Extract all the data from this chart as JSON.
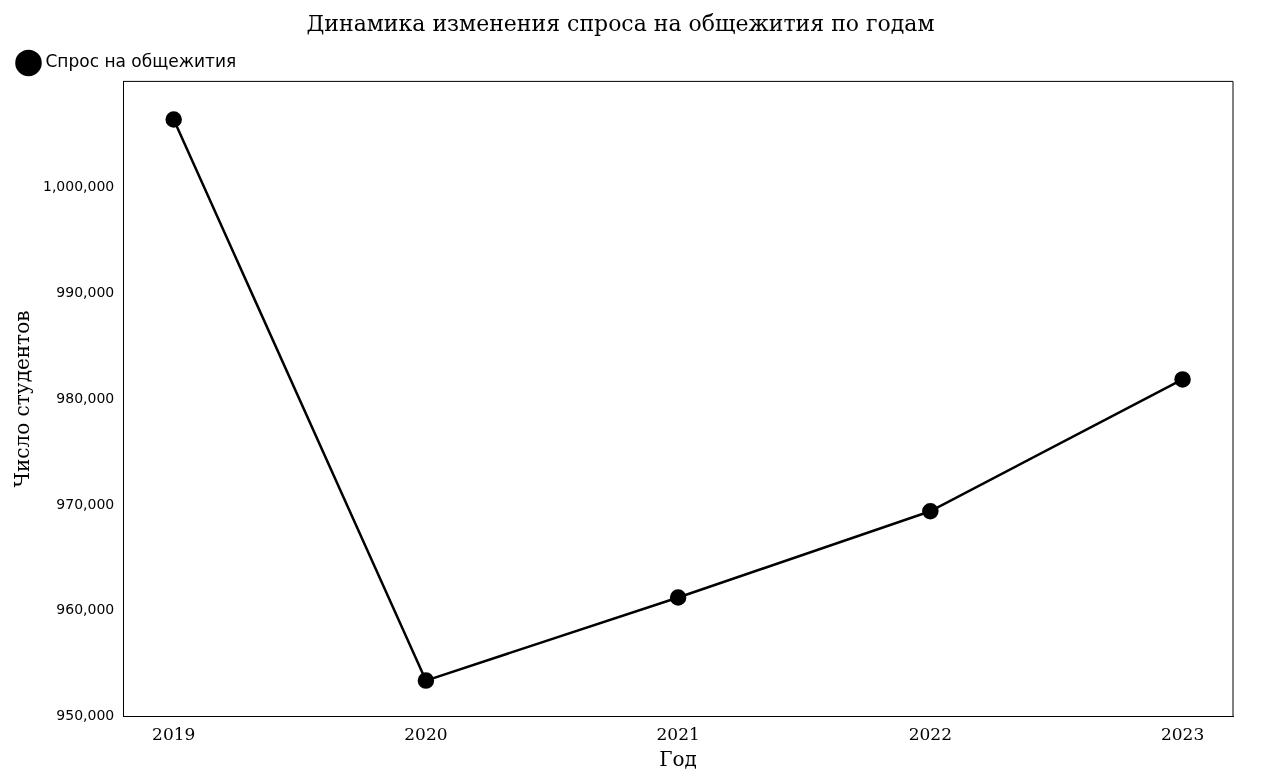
{
  "chart_data": {
    "type": "line",
    "title": "Динамика изменения спроса на общежития по годам",
    "xlabel": "Год",
    "ylabel": "Число студентов",
    "x": [
      2019,
      2020,
      2021,
      2022,
      2023
    ],
    "series": [
      {
        "name": "Спрос на общежития",
        "color": "#000000",
        "values": [
          1006400,
          953400,
          961250,
          969400,
          981850
        ]
      }
    ],
    "xlim": [
      2018.8,
      2023.2
    ],
    "xticks": [
      2019,
      2020,
      2021,
      2022,
      2023
    ],
    "ylim": [
      950000,
      1010000
    ],
    "yticks": [
      {
        "value": 950000,
        "label": "950,000"
      },
      {
        "value": 960000,
        "label": "960,000"
      },
      {
        "value": 970000,
        "label": "970,000"
      },
      {
        "value": 980000,
        "label": "980,000"
      },
      {
        "value": 990000,
        "label": "990,000"
      },
      {
        "value": 1000000,
        "label": "1,000,000"
      }
    ],
    "marker": "circle",
    "line_style": "solid",
    "legend": "top left",
    "grid": false
  }
}
